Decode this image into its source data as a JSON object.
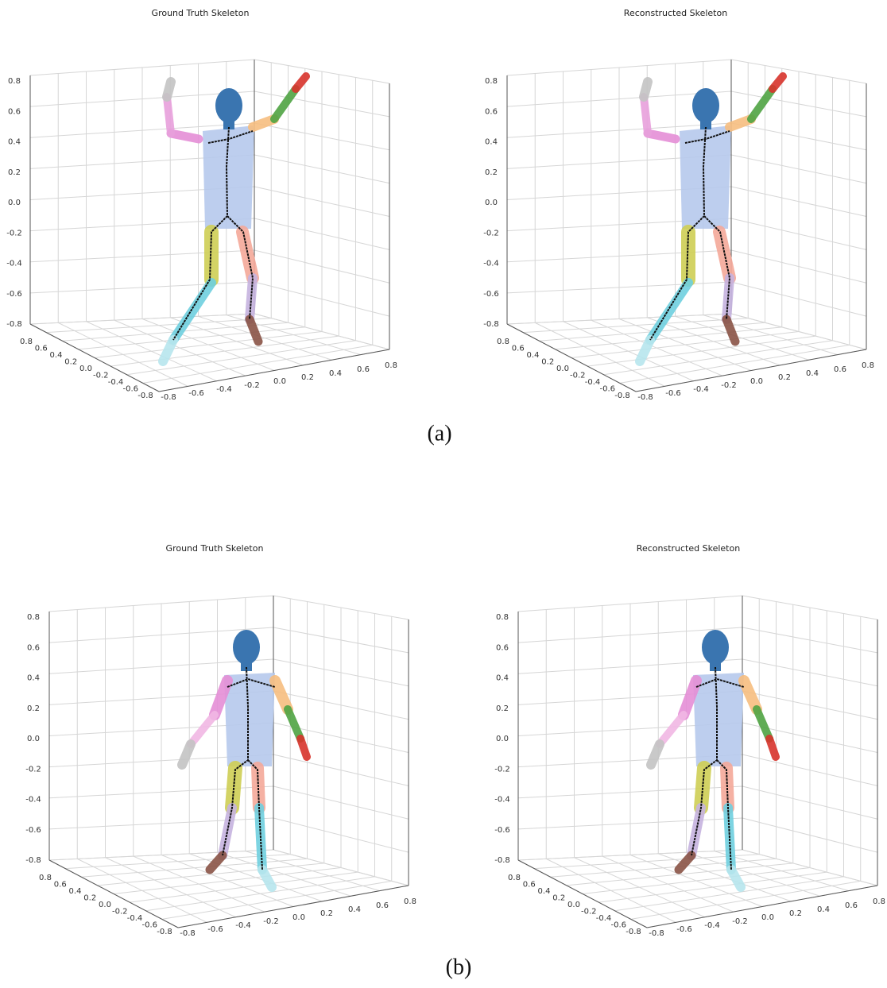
{
  "figure": {
    "rows": [
      {
        "caption": "(a)",
        "panels": [
          {
            "title": "Ground Truth Skeleton"
          },
          {
            "title": "Reconstructed Skeleton"
          }
        ]
      },
      {
        "caption": "(b)",
        "panels": [
          {
            "title": "Ground Truth Skeleton"
          },
          {
            "title": "Reconstructed Skeleton"
          }
        ]
      }
    ],
    "ticks": {
      "z": [
        "0.8",
        "0.6",
        "0.4",
        "0.2",
        "0.0",
        "-0.2",
        "-0.4",
        "-0.6",
        "-0.8"
      ],
      "y": [
        "0.8",
        "0.6",
        "0.4",
        "0.2",
        "0.0",
        "-0.2",
        "-0.4",
        "-0.6",
        "-0.8"
      ],
      "x": [
        "-0.8",
        "-0.6",
        "-0.4",
        "-0.2",
        "0.0",
        "0.2",
        "0.4",
        "0.6",
        "0.8"
      ]
    }
  }
}
